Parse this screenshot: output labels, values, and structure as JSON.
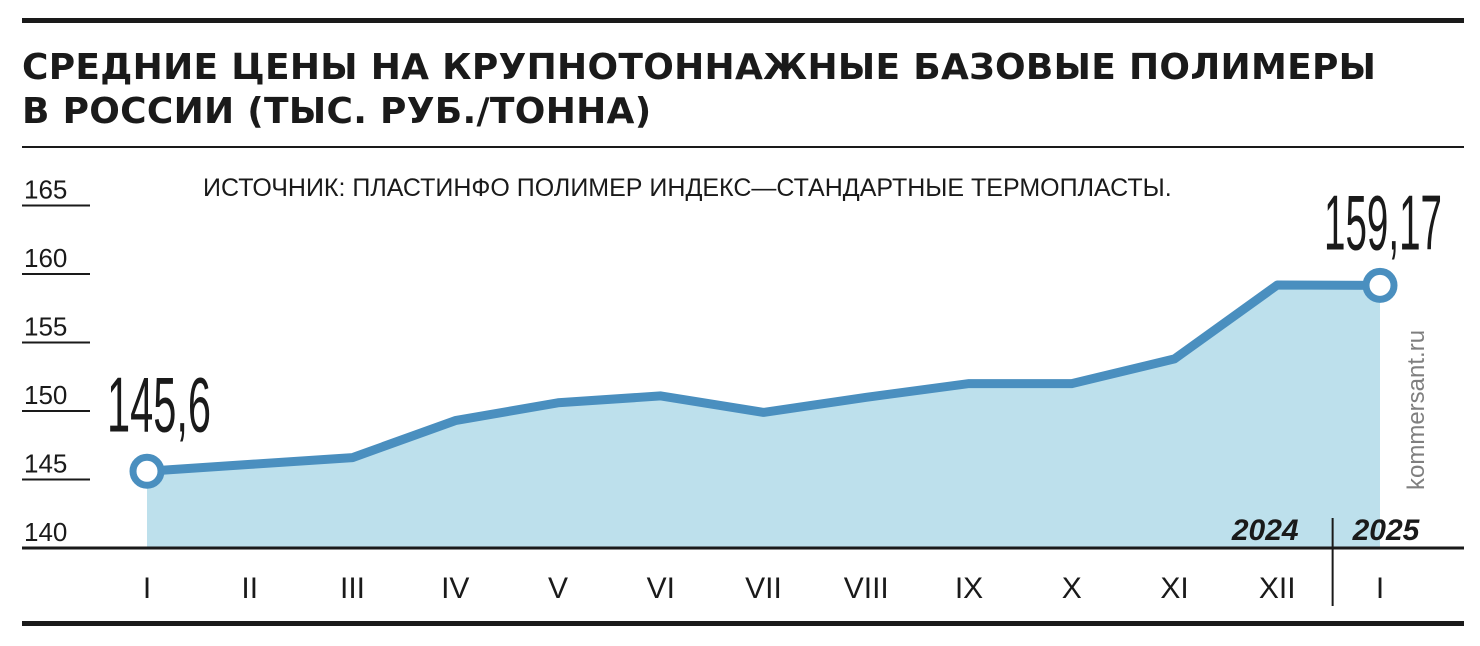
{
  "title_lines": [
    "СРЕДНИЕ ЦЕНЫ НА КРУПНОТОННАЖНЫЕ БАЗОВЫЕ ПОЛИМЕРЫ",
    "В РОССИИ (ТЫС. РУБ./ТОННА)"
  ],
  "source": "ИСТОЧНИК: ПЛАСТИНФО ПОЛИМЕР ИНДЕКС—СТАНДАРТНЫЕ ТЕРМОПЛАСТЫ.",
  "credit": "kommersant.ru",
  "colors": {
    "line": "#4a8fbf",
    "area": "#bde0ec",
    "text": "#1a1a1a",
    "credit": "#7f7f7f"
  },
  "chart_data": {
    "type": "area",
    "categories": [
      "I",
      "II",
      "III",
      "IV",
      "V",
      "VI",
      "VII",
      "VIII",
      "IX",
      "X",
      "XI",
      "XII",
      "I"
    ],
    "values": [
      145.6,
      146.1,
      146.6,
      149.3,
      150.6,
      151.1,
      149.9,
      151.0,
      152.0,
      152.0,
      153.8,
      159.2,
      159.17
    ],
    "ylim": [
      140,
      165
    ],
    "yticks": [
      "165",
      "160",
      "155",
      "150",
      "145",
      "140"
    ],
    "year_labels": [
      {
        "label": "2024",
        "from_index": 0
      },
      {
        "label": "2025",
        "from_index": 12
      }
    ],
    "point_labels": [
      {
        "index": 0,
        "text": "145,6"
      },
      {
        "index": 12,
        "text": "159,17"
      }
    ],
    "title": "СРЕДНИЕ ЦЕНЫ НА КРУПНОТОННАЖНЫЕ БАЗОВЫЕ ПОЛИМЕРЫ В РОССИИ (ТЫС. РУБ./ТОННА)",
    "grid": false
  }
}
